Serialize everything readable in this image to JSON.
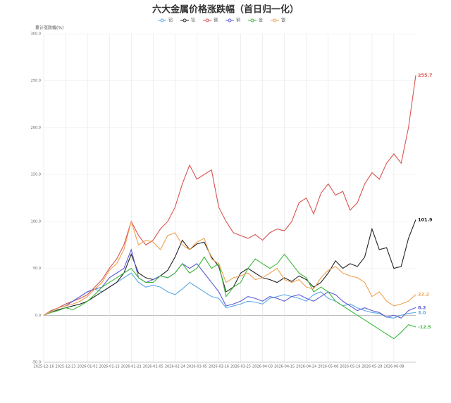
{
  "chart_data": {
    "type": "line",
    "title": "六大金属价格涨跌幅（首日归一化）",
    "y_label": "累计涨跌幅(%)",
    "categories": [
      "2025-12-16",
      null,
      null,
      "2025-12-23",
      null,
      null,
      "2026-01-01",
      null,
      null,
      "2026-01-13",
      null,
      null,
      "2026-01-21",
      null,
      null,
      "2026-02-05",
      null,
      null,
      "2026-02-24",
      null,
      null,
      "2026-03-05",
      null,
      null,
      "2026-03-16",
      null,
      null,
      "2026-03-25",
      null,
      null,
      "2026-04-03",
      null,
      null,
      "2026-04-15",
      null,
      null,
      "2026-04-24",
      null,
      null,
      "2026-05-08",
      null,
      null,
      "2026-05-19",
      null,
      null,
      "2026-05-28",
      null,
      null,
      "2026-06-08",
      null,
      null,
      null
    ],
    "ylim": [
      -50,
      300
    ],
    "yticks": [
      {
        "value": -50,
        "label": "-50.0"
      },
      {
        "value": 0,
        "label": "0.0"
      },
      {
        "value": 50,
        "label": "50.0"
      },
      {
        "value": 100,
        "label": "100.0"
      },
      {
        "value": 150,
        "label": "150.0"
      },
      {
        "value": 200,
        "label": "200.0"
      },
      {
        "value": 250,
        "label": "250.0"
      },
      {
        "value": 300,
        "label": "300.0"
      }
    ],
    "grid": true,
    "series": [
      {
        "name": "铝",
        "color": "#5aa9e6",
        "values": [
          0,
          4,
          8,
          12,
          15,
          20,
          25,
          28,
          25,
          30,
          35,
          40,
          45,
          35,
          30,
          32,
          30,
          25,
          22,
          28,
          35,
          30,
          25,
          20,
          18,
          8,
          10,
          12,
          15,
          14,
          12,
          18,
          20,
          22,
          20,
          18,
          15,
          22,
          25,
          18,
          15,
          10,
          12,
          8,
          5,
          3,
          2,
          -2,
          -3,
          0,
          2,
          3.0
        ],
        "value_labels": [
          null,
          null,
          null,
          null,
          null,
          null,
          null,
          null,
          null,
          null,
          null,
          null,
          null,
          null,
          null,
          null,
          null,
          null,
          null,
          null,
          null,
          null,
          null,
          null,
          null,
          null,
          null,
          null,
          null,
          null,
          null,
          null,
          null,
          null,
          null,
          null,
          null,
          null,
          null,
          null,
          null,
          null,
          null,
          null,
          null,
          null,
          null,
          null,
          null,
          null,
          null,
          "3.0"
        ]
      },
      {
        "name": "铅",
        "color": "#222222",
        "values": [
          0,
          3,
          6,
          8,
          10,
          12,
          15,
          20,
          25,
          30,
          35,
          45,
          65,
          45,
          40,
          38,
          42,
          48,
          62,
          80,
          70,
          76,
          78,
          62,
          52,
          25,
          30,
          45,
          50,
          45,
          40,
          38,
          35,
          40,
          36,
          42,
          38,
          30,
          35,
          45,
          58,
          50,
          55,
          52,
          62,
          92,
          70,
          72,
          50,
          52,
          82,
          101.9
        ]
      },
      {
        "name": "锡",
        "color": "#d9534f",
        "values": [
          0,
          5,
          8,
          12,
          15,
          18,
          22,
          30,
          38,
          50,
          60,
          75,
          100,
          85,
          75,
          80,
          92,
          100,
          115,
          140,
          160,
          145,
          150,
          155,
          115,
          100,
          88,
          85,
          82,
          86,
          80,
          88,
          92,
          90,
          100,
          120,
          125,
          108,
          130,
          140,
          128,
          132,
          112,
          120,
          140,
          152,
          145,
          162,
          172,
          162,
          200,
          255.7
        ]
      },
      {
        "name": "铜",
        "color": "#5b5bd6",
        "values": [
          0,
          4,
          8,
          10,
          15,
          20,
          25,
          28,
          30,
          40,
          45,
          50,
          70,
          40,
          35,
          38,
          42,
          40,
          45,
          55,
          50,
          55,
          45,
          35,
          25,
          10,
          12,
          15,
          20,
          18,
          15,
          20,
          18,
          15,
          20,
          22,
          18,
          15,
          20,
          25,
          22,
          15,
          10,
          5,
          8,
          5,
          3,
          -2,
          0,
          -3,
          5,
          8.2
        ]
      },
      {
        "name": "金",
        "color": "#3cb83c",
        "values": [
          0,
          3,
          5,
          8,
          6,
          10,
          15,
          22,
          30,
          35,
          40,
          45,
          50,
          40,
          35,
          35,
          42,
          40,
          45,
          55,
          45,
          50,
          62,
          50,
          55,
          20,
          30,
          35,
          50,
          60,
          55,
          50,
          55,
          65,
          55,
          45,
          40,
          25,
          30,
          25,
          15,
          10,
          5,
          0,
          -5,
          -10,
          -15,
          -20,
          -25,
          -18,
          -10,
          -12.5
        ]
      },
      {
        "name": "银",
        "color": "#f0a050",
        "values": [
          0,
          4,
          8,
          10,
          12,
          15,
          20,
          28,
          35,
          48,
          55,
          70,
          100,
          75,
          80,
          78,
          70,
          85,
          88,
          75,
          70,
          78,
          82,
          60,
          55,
          35,
          40,
          42,
          45,
          38,
          40,
          45,
          50,
          38,
          35,
          38,
          30,
          28,
          40,
          48,
          52,
          45,
          42,
          40,
          35,
          20,
          25,
          15,
          10,
          12,
          15,
          22.2
        ]
      }
    ]
  }
}
